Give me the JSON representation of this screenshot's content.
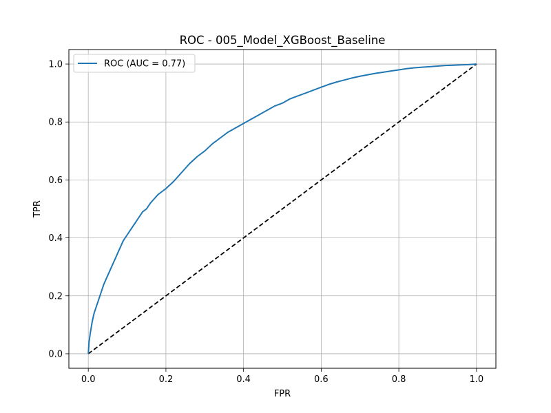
{
  "chart_data": {
    "type": "line",
    "title": "ROC - 005_Model_XGBoost_Baseline",
    "xlabel": "FPR",
    "ylabel": "TPR",
    "xlim": [
      -0.05,
      1.05
    ],
    "ylim": [
      -0.05,
      1.05
    ],
    "xticks": [
      0.0,
      0.2,
      0.4,
      0.6,
      0.8,
      1.0
    ],
    "yticks": [
      0.0,
      0.2,
      0.4,
      0.6,
      0.8,
      1.0
    ],
    "xtick_labels": [
      "0.0",
      "0.2",
      "0.4",
      "0.6",
      "0.8",
      "1.0"
    ],
    "ytick_labels": [
      "0.0",
      "0.2",
      "0.4",
      "0.6",
      "0.8",
      "1.0"
    ],
    "grid": true,
    "legend_position": "top-left",
    "series": [
      {
        "name": "ROC (AUC = 0.77)",
        "color": "#1f77b4",
        "style": "solid",
        "x": [
          0.0,
          0.002,
          0.005,
          0.01,
          0.015,
          0.02,
          0.03,
          0.04,
          0.05,
          0.06,
          0.07,
          0.08,
          0.09,
          0.1,
          0.11,
          0.12,
          0.13,
          0.14,
          0.15,
          0.16,
          0.17,
          0.18,
          0.19,
          0.2,
          0.22,
          0.24,
          0.26,
          0.28,
          0.3,
          0.32,
          0.34,
          0.36,
          0.38,
          0.4,
          0.42,
          0.44,
          0.46,
          0.48,
          0.5,
          0.52,
          0.54,
          0.56,
          0.58,
          0.6,
          0.62,
          0.64,
          0.66,
          0.68,
          0.7,
          0.72,
          0.74,
          0.76,
          0.78,
          0.8,
          0.82,
          0.84,
          0.86,
          0.88,
          0.9,
          0.92,
          0.94,
          0.96,
          0.98,
          1.0
        ],
        "y": [
          0.0,
          0.04,
          0.07,
          0.11,
          0.14,
          0.16,
          0.2,
          0.24,
          0.27,
          0.3,
          0.33,
          0.36,
          0.39,
          0.41,
          0.43,
          0.45,
          0.47,
          0.49,
          0.5,
          0.52,
          0.535,
          0.55,
          0.56,
          0.57,
          0.595,
          0.625,
          0.655,
          0.68,
          0.7,
          0.725,
          0.745,
          0.765,
          0.78,
          0.795,
          0.81,
          0.825,
          0.84,
          0.855,
          0.865,
          0.88,
          0.89,
          0.9,
          0.91,
          0.92,
          0.93,
          0.938,
          0.945,
          0.952,
          0.958,
          0.963,
          0.968,
          0.972,
          0.976,
          0.98,
          0.984,
          0.987,
          0.989,
          0.991,
          0.993,
          0.995,
          0.996,
          0.997,
          0.998,
          1.0
        ]
      },
      {
        "name": "",
        "color": "#000000",
        "style": "dashed",
        "x": [
          0.0,
          1.0
        ],
        "y": [
          0.0,
          1.0
        ]
      }
    ]
  }
}
